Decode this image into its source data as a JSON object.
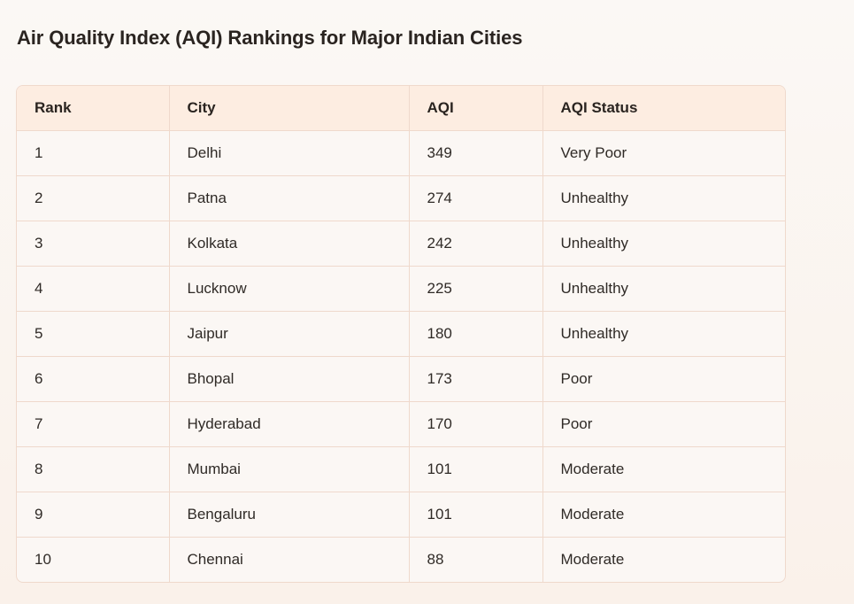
{
  "title": "Air Quality Index (AQI) Rankings for Major Indian Cities",
  "columns": [
    "Rank",
    "City",
    "AQI",
    "AQI Status"
  ],
  "rows": [
    {
      "rank": "1",
      "city": "Delhi",
      "aqi": "349",
      "status": "Very Poor"
    },
    {
      "rank": "2",
      "city": "Patna",
      "aqi": "274",
      "status": "Unhealthy"
    },
    {
      "rank": "3",
      "city": "Kolkata",
      "aqi": "242",
      "status": "Unhealthy"
    },
    {
      "rank": "4",
      "city": "Lucknow",
      "aqi": "225",
      "status": "Unhealthy"
    },
    {
      "rank": "5",
      "city": "Jaipur",
      "aqi": "180",
      "status": "Unhealthy"
    },
    {
      "rank": "6",
      "city": "Bhopal",
      "aqi": "173",
      "status": "Poor"
    },
    {
      "rank": "7",
      "city": "Hyderabad",
      "aqi": "170",
      "status": "Poor"
    },
    {
      "rank": "8",
      "city": "Mumbai",
      "aqi": "101",
      "status": "Moderate"
    },
    {
      "rank": "9",
      "city": "Bengaluru",
      "aqi": "101",
      "status": "Moderate"
    },
    {
      "rank": "10",
      "city": "Chennai",
      "aqi": "88",
      "status": "Moderate"
    }
  ],
  "colors": {
    "header_background": "#fdede1",
    "border": "#efd9cc",
    "page_background": "#fbf8f5"
  }
}
